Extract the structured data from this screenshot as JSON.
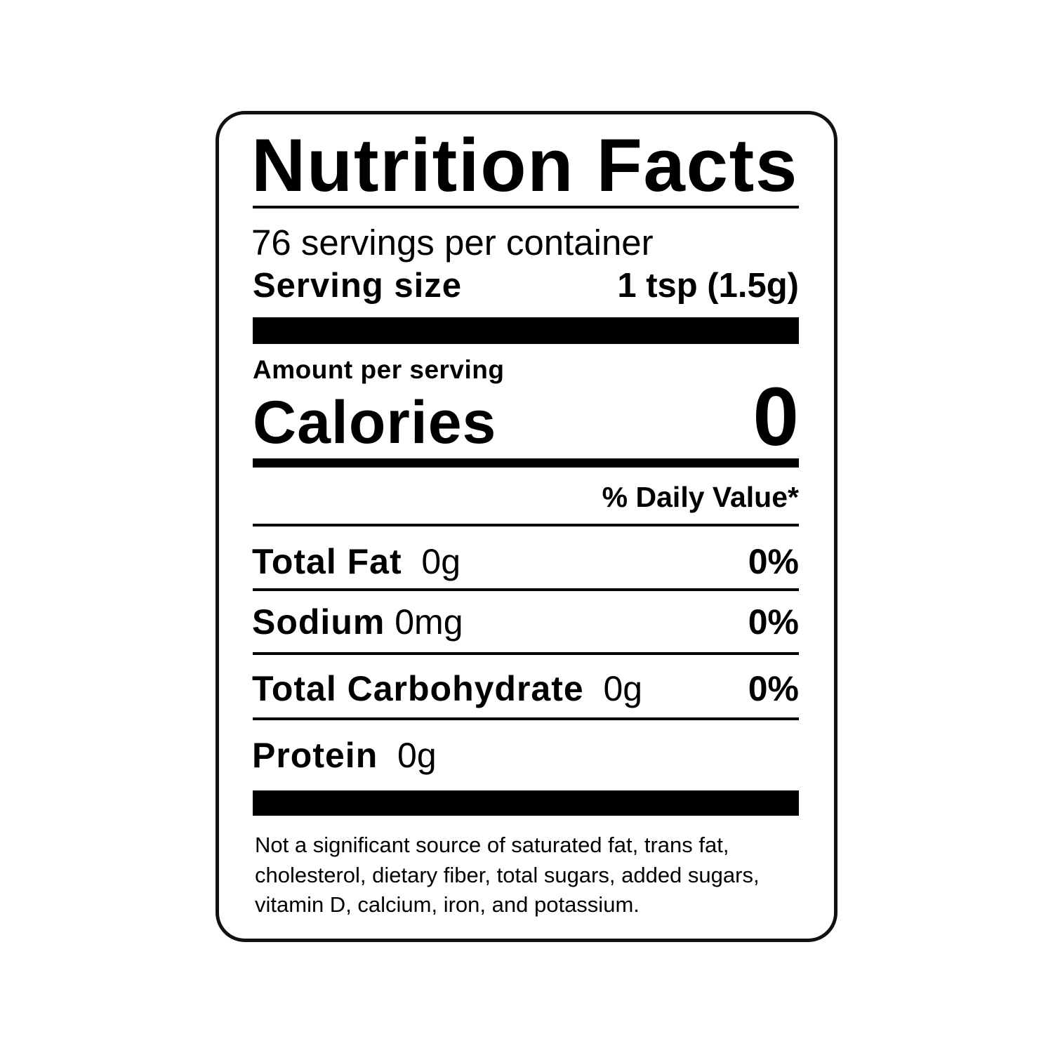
{
  "title": "Nutrition Facts",
  "servings_per_container": "76 servings per container",
  "serving_size": {
    "label": "Serving size",
    "value": "1 tsp (1.5g)"
  },
  "amount_per_serving": "Amount per serving",
  "calories": {
    "label": "Calories",
    "value": "0"
  },
  "daily_value_header": "% Daily Value*",
  "nutrients": [
    {
      "name": "Total Fat",
      "amount": "0g",
      "dv": "0%"
    },
    {
      "name": "Sodium",
      "amount": "0mg",
      "dv": "0%"
    },
    {
      "name": "Total Carbohydrate",
      "amount": "0g",
      "dv": "0%"
    },
    {
      "name": "Protein",
      "amount": "0g",
      "dv": ""
    }
  ],
  "footnote": [
    "Not a significant source of saturated fat, trans fat,",
    "cholesterol, dietary fiber, total sugars, added sugars,",
    "vitamin D, calcium, iron, and potassium."
  ]
}
